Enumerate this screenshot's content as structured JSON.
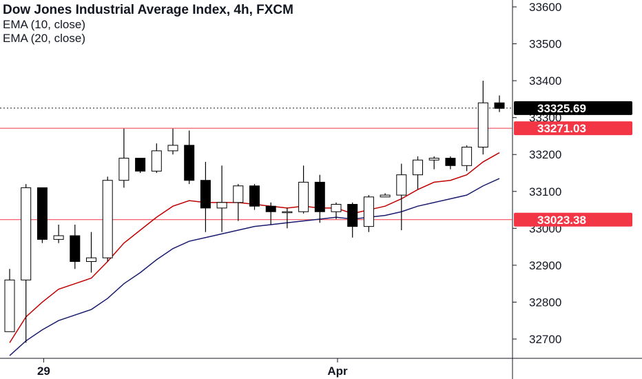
{
  "chart_data": {
    "type": "candlestick",
    "title": "Dow Jones Industrial Average Index, 4h, FXCM",
    "indicators": [
      {
        "name": "EMA (10, close)",
        "color": "#c00000"
      },
      {
        "name": "EMA (20, close)",
        "color": "#1a1a6e"
      }
    ],
    "ylim": [
      32650,
      33640
    ],
    "y_ticks": [
      32700,
      32800,
      32900,
      33000,
      33100,
      33200,
      33300,
      33400,
      33500,
      33600
    ],
    "x_ticks": [
      {
        "label": "29",
        "index": 2
      },
      {
        "label": "Apr",
        "index": 20
      }
    ],
    "candles": [
      {
        "o": 32720,
        "h": 32890,
        "l": 32720,
        "c": 32860
      },
      {
        "o": 32860,
        "h": 33120,
        "l": 32690,
        "c": 33110
      },
      {
        "o": 33110,
        "h": 33110,
        "l": 32960,
        "c": 32970
      },
      {
        "o": 32970,
        "h": 33010,
        "l": 32960,
        "c": 32980
      },
      {
        "o": 32980,
        "h": 33010,
        "l": 32890,
        "c": 32910
      },
      {
        "o": 32910,
        "h": 32990,
        "l": 32880,
        "c": 32920
      },
      {
        "o": 32920,
        "h": 33140,
        "l": 32910,
        "c": 33130
      },
      {
        "o": 33130,
        "h": 33270,
        "l": 33110,
        "c": 33190
      },
      {
        "o": 33190,
        "h": 33190,
        "l": 33150,
        "c": 33155
      },
      {
        "o": 33155,
        "h": 33230,
        "l": 33150,
        "c": 33210
      },
      {
        "o": 33210,
        "h": 33270,
        "l": 33200,
        "c": 33225
      },
      {
        "o": 33225,
        "h": 33265,
        "l": 33120,
        "c": 33130
      },
      {
        "o": 33130,
        "h": 33180,
        "l": 32990,
        "c": 33055
      },
      {
        "o": 33055,
        "h": 33170,
        "l": 32990,
        "c": 33070
      },
      {
        "o": 33070,
        "h": 33120,
        "l": 33020,
        "c": 33115
      },
      {
        "o": 33115,
        "h": 33120,
        "l": 33050,
        "c": 33060
      },
      {
        "o": 33060,
        "h": 33070,
        "l": 33010,
        "c": 33045
      },
      {
        "o": 33045,
        "h": 33055,
        "l": 33000,
        "c": 33045
      },
      {
        "o": 33045,
        "h": 33170,
        "l": 33040,
        "c": 33125
      },
      {
        "o": 33125,
        "h": 33145,
        "l": 33015,
        "c": 33045
      },
      {
        "o": 33045,
        "h": 33070,
        "l": 33025,
        "c": 33065
      },
      {
        "o": 33065,
        "h": 33070,
        "l": 32975,
        "c": 33005
      },
      {
        "o": 33005,
        "h": 33090,
        "l": 32990,
        "c": 33085
      },
      {
        "o": 33085,
        "h": 33095,
        "l": 33085,
        "c": 33090
      },
      {
        "o": 33090,
        "h": 33175,
        "l": 32995,
        "c": 33145
      },
      {
        "o": 33145,
        "h": 33195,
        "l": 33105,
        "c": 33185
      },
      {
        "o": 33185,
        "h": 33195,
        "l": 33160,
        "c": 33190
      },
      {
        "o": 33190,
        "h": 33195,
        "l": 33160,
        "c": 33170
      },
      {
        "o": 33170,
        "h": 33225,
        "l": 33155,
        "c": 33220
      },
      {
        "o": 33220,
        "h": 33400,
        "l": 33200,
        "c": 33340
      },
      {
        "o": 33340,
        "h": 33360,
        "l": 33315,
        "c": 33325
      }
    ],
    "ema10": [
      32690,
      32760,
      32800,
      32835,
      32850,
      32865,
      32910,
      32960,
      32995,
      33030,
      33060,
      33075,
      33070,
      33070,
      33070,
      33065,
      33060,
      33055,
      33060,
      33055,
      33055,
      33040,
      33050,
      33060,
      33080,
      33105,
      33125,
      33130,
      33145,
      33180,
      33205
    ],
    "ema20": [
      32655,
      32695,
      32725,
      32750,
      32765,
      32780,
      32810,
      32850,
      32880,
      32915,
      32945,
      32965,
      32975,
      32985,
      32995,
      33005,
      33010,
      33015,
      33020,
      33025,
      33030,
      33025,
      33030,
      33035,
      33045,
      33060,
      33070,
      33080,
      33090,
      33115,
      33135
    ],
    "price_labels": [
      {
        "value": 33325.69,
        "text": "33325.69",
        "bg": "#000000",
        "line": "dotted"
      },
      {
        "value": 33271.03,
        "text": "33271.03",
        "bg": "#f23645",
        "line": "solid"
      },
      {
        "value": 33023.38,
        "text": "33023.38",
        "bg": "#f23645",
        "line": "solid"
      }
    ],
    "colors": {
      "up_body": "#ffffff",
      "down_body": "#000000",
      "wick": "#000000",
      "grid_axis": "#131722",
      "hline": "#f23645"
    }
  }
}
